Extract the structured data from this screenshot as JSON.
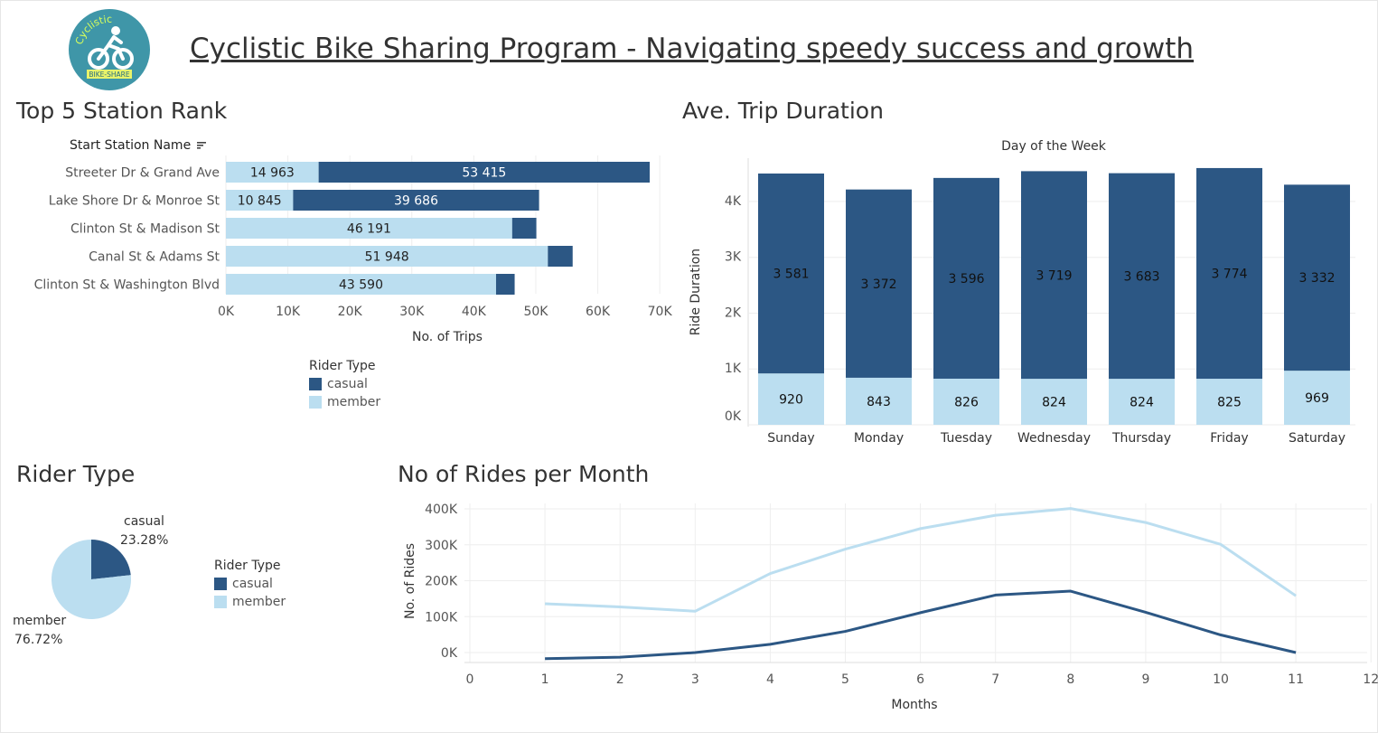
{
  "dashboard": {
    "title": "Cyclistic Bike Sharing Program - Navigating speedy success and growth",
    "logo": {
      "icon": "bicycle-rider-icon",
      "top_text": "Cyclistic",
      "bottom_text": "BIKE-SHARE"
    }
  },
  "colors": {
    "casual": "#2c5784",
    "member": "#bbdef0",
    "grid": "#eeeeee",
    "axis_text": "#555555"
  },
  "legend": {
    "title": "Rider Type",
    "items": [
      {
        "label": "casual",
        "color": "#2c5784"
      },
      {
        "label": "member",
        "color": "#bbdef0"
      }
    ]
  },
  "chart_data": [
    {
      "id": "top-stations",
      "type": "bar",
      "title": "Top 5 Station Rank",
      "row_header": "Start Station Name",
      "xlabel": "No. of Trips",
      "xlim": [
        0,
        70000
      ],
      "x_ticks": [
        0,
        10000,
        20000,
        30000,
        40000,
        50000,
        60000,
        70000
      ],
      "x_tick_labels": [
        "0K",
        "10K",
        "20K",
        "30K",
        "40K",
        "50K",
        "60K",
        "70K"
      ],
      "categories": [
        "Streeter Dr & Grand Ave",
        "Lake Shore Dr & Monroe St",
        "Clinton St & Madison St",
        "Canal St & Adams St",
        "Clinton St & Washington Blvd"
      ],
      "series": [
        {
          "name": "member",
          "values": [
            14963,
            10845,
            46191,
            51948,
            43590
          ],
          "labels": [
            "14 963",
            "10 845",
            "46 191",
            "51 948",
            "43 590"
          ]
        },
        {
          "name": "casual",
          "values": [
            53415,
            39686,
            3900,
            4000,
            3000
          ],
          "labels": [
            "53 415",
            "39 686",
            "",
            "",
            ""
          ]
        }
      ]
    },
    {
      "id": "trip-duration",
      "type": "bar",
      "title": "Ave. Trip Duration",
      "column_header": "Day of the Week",
      "ylabel": "Ride Duration",
      "ylim": [
        0,
        4600
      ],
      "y_ticks": [
        0,
        1000,
        2000,
        3000,
        4000
      ],
      "y_tick_labels": [
        "0K",
        "1K",
        "2K",
        "3K",
        "4K"
      ],
      "categories": [
        "Sunday",
        "Monday",
        "Tuesday",
        "Wednesday",
        "Thursday",
        "Friday",
        "Saturday"
      ],
      "series": [
        {
          "name": "member",
          "values": [
            920,
            843,
            826,
            824,
            824,
            825,
            969
          ],
          "labels": [
            "920",
            "843",
            "826",
            "824",
            "824",
            "825",
            "969"
          ]
        },
        {
          "name": "casual",
          "values": [
            3581,
            3372,
            3596,
            3719,
            3683,
            3774,
            3332
          ],
          "labels": [
            "3 581",
            "3 372",
            "3 596",
            "3 719",
            "3 683",
            "3 774",
            "3 332"
          ]
        }
      ]
    },
    {
      "id": "rider-type",
      "type": "pie",
      "title": "Rider Type",
      "slices": [
        {
          "name": "casual",
          "value": 23.28,
          "label": "23.28%"
        },
        {
          "name": "member",
          "value": 76.72,
          "label": "76.72%"
        }
      ]
    },
    {
      "id": "rides-per-month",
      "type": "line",
      "title": "No of Rides per Month",
      "xlabel": "Months",
      "ylabel": "No. of Rides",
      "xlim": [
        0,
        12
      ],
      "ylim": [
        -20000,
        415000
      ],
      "x_ticks": [
        0,
        1,
        2,
        3,
        4,
        5,
        6,
        7,
        8,
        9,
        10,
        11,
        12
      ],
      "y_ticks": [
        0,
        100000,
        200000,
        300000,
        400000
      ],
      "y_tick_labels": [
        "0K",
        "100K",
        "200K",
        "300K",
        "400K"
      ],
      "x": [
        1,
        2,
        3,
        4,
        5,
        6,
        7,
        8,
        9,
        10,
        11
      ],
      "series": [
        {
          "name": "member",
          "values": [
            136000,
            127000,
            115000,
            220000,
            288000,
            345000,
            382000,
            401000,
            362000,
            301000,
            158000
          ]
        },
        {
          "name": "casual",
          "values": [
            -17000,
            -13000,
            0,
            23000,
            59000,
            111000,
            160000,
            171000,
            112000,
            49000,
            0
          ]
        }
      ]
    }
  ]
}
